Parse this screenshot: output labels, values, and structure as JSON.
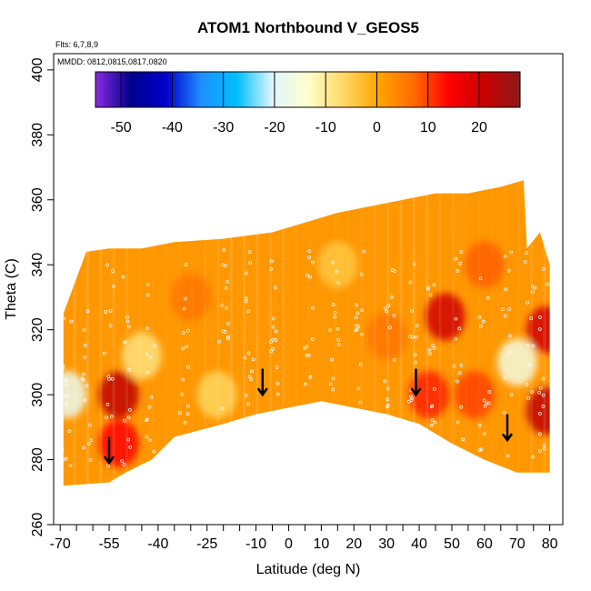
{
  "chart_data": {
    "type": "heatmap",
    "title": "ATOM1 Northbound V_GEOS5",
    "annotations": [
      "Flts: 6,7,8,9",
      "MMDD: 0812,0815,0817,0820"
    ],
    "xlabel": "Latitude (deg N)",
    "ylabel": "Theta (C)",
    "xlim": [
      -72,
      84
    ],
    "ylim": [
      260,
      405
    ],
    "x_ticks": [
      -70,
      -55,
      -40,
      -25,
      -10,
      0,
      10,
      20,
      30,
      40,
      50,
      60,
      70,
      80
    ],
    "x_tick_labels": [
      "-70",
      "-55",
      "-40",
      "-25",
      "-10",
      "0",
      "10",
      "20",
      "30",
      "40",
      "50",
      "60",
      "70",
      "80"
    ],
    "x_minor_ticks": [
      -65,
      -60,
      -50,
      -45,
      -35,
      -30,
      -20,
      -15,
      -5,
      5,
      15,
      25,
      35,
      45,
      55,
      65,
      75
    ],
    "y_ticks": [
      260,
      280,
      300,
      320,
      340,
      360,
      380,
      400
    ],
    "y_tick_labels": [
      "260",
      "280",
      "300",
      "320",
      "340",
      "360",
      "380",
      "400"
    ],
    "colorbar": {
      "range": [
        -55,
        28
      ],
      "ticks": [
        -50,
        -40,
        -30,
        -20,
        -10,
        0,
        10,
        20
      ],
      "tick_labels": [
        "-50",
        "-40",
        "-30",
        "-20",
        "-10",
        "0",
        "10",
        "20"
      ],
      "colors": [
        "#8a2be2",
        "#00008b",
        "#0000cd",
        "#1e90ff",
        "#00bfff",
        "#e0f6ff",
        "#ffffcc",
        "#ffd966",
        "#ffa500",
        "#ff6a00",
        "#ff0000",
        "#c80000",
        "#8b1a1a"
      ]
    },
    "curtain": {
      "top_boundary": [
        [
          -69,
          325
        ],
        [
          -62,
          344
        ],
        [
          -55,
          345
        ],
        [
          -45,
          345
        ],
        [
          -35,
          347
        ],
        [
          -20,
          348
        ],
        [
          -5,
          350
        ],
        [
          5,
          353
        ],
        [
          15,
          356
        ],
        [
          25,
          358
        ],
        [
          35,
          360
        ],
        [
          45,
          362
        ],
        [
          55,
          362
        ],
        [
          65,
          364
        ],
        [
          72,
          366
        ],
        [
          73,
          345
        ],
        [
          77,
          350
        ],
        [
          80,
          340
        ]
      ],
      "bottom_boundary": [
        [
          -69,
          272
        ],
        [
          -55,
          273
        ],
        [
          -50,
          276
        ],
        [
          -42,
          280
        ],
        [
          -35,
          287
        ],
        [
          -20,
          291
        ],
        [
          -10,
          294
        ],
        [
          0,
          296
        ],
        [
          10,
          298
        ],
        [
          20,
          296
        ],
        [
          30,
          294
        ],
        [
          40,
          291
        ],
        [
          50,
          285
        ],
        [
          60,
          280
        ],
        [
          70,
          276
        ],
        [
          80,
          276
        ]
      ],
      "background_value": 2,
      "anomalies": [
        {
          "lat": -52,
          "theta": 300,
          "value": 22
        },
        {
          "lat": -52,
          "theta": 285,
          "value": 14
        },
        {
          "lat": 48,
          "theta": 324,
          "value": 20
        },
        {
          "lat": 43,
          "theta": 300,
          "value": 12
        },
        {
          "lat": 57,
          "theta": 300,
          "value": 10
        },
        {
          "lat": 79,
          "theta": 320,
          "value": 20
        },
        {
          "lat": 79,
          "theta": 295,
          "value": 22
        },
        {
          "lat": -68,
          "theta": 300,
          "value": -18
        },
        {
          "lat": 70,
          "theta": 310,
          "value": -16
        },
        {
          "lat": -22,
          "theta": 300,
          "value": -6
        },
        {
          "lat": -45,
          "theta": 312,
          "value": -8
        },
        {
          "lat": 30,
          "theta": 318,
          "value": 6
        },
        {
          "lat": 60,
          "theta": 340,
          "value": 8
        },
        {
          "lat": 15,
          "theta": 340,
          "value": -4
        },
        {
          "lat": -30,
          "theta": 330,
          "value": 6
        }
      ]
    },
    "arrows": [
      {
        "lat": -55,
        "theta": 279
      },
      {
        "lat": -8,
        "theta": 300
      },
      {
        "lat": 39,
        "theta": 300
      },
      {
        "lat": 67,
        "theta": 286
      }
    ]
  }
}
